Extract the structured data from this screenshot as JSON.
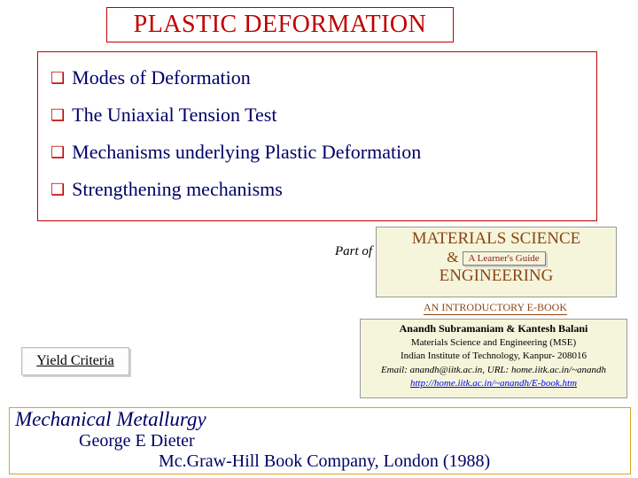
{
  "title": "PLASTIC DEFORMATION",
  "topics": [
    "Modes of Deformation",
    "The Uniaxial Tension Test",
    "Mechanisms underlying Plastic Deformation",
    "Strengthening mechanisms"
  ],
  "part_of_label": "Part of",
  "matsci": {
    "line1": "MATERIALS SCIENCE",
    "amp": "&",
    "guide": "A Learner's Guide",
    "line2": "ENGINEERING"
  },
  "ebook_label": "AN INTRODUCTORY E-BOOK",
  "authors": {
    "names": "Anandh Subramaniam & Kantesh Balani",
    "dept": "Materials Science and Engineering (MSE)",
    "inst": "Indian Institute of Technology, Kanpur- 208016",
    "email_line": "Email: anandh@iitk.ac.in, URL: home.iitk.ac.in/~anandh",
    "url": "http://home.iitk.ac.in/~anandh/E-book.htm"
  },
  "yield_criteria": "Yield Criteria",
  "book": {
    "title": "Mechanical Metallurgy",
    "author": "George E Dieter",
    "publisher": "Mc.Graw-Hill Book Company, London (1988)"
  },
  "colors": {
    "accent_red": "#c00000",
    "dark_blue": "#000066",
    "brown": "#8b4513",
    "gold": "#daa520",
    "cream": "#f5f5dc"
  }
}
